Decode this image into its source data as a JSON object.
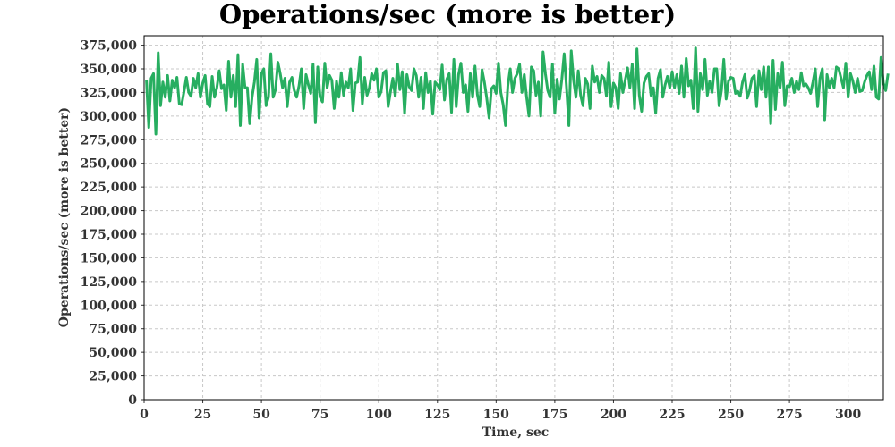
{
  "chart_data": {
    "type": "line",
    "title": "Operations/sec (more is better)",
    "xlabel": "Time, sec",
    "ylabel": "Operations/sec (more is better)",
    "xlim": [
      0,
      315
    ],
    "ylim": [
      0,
      385000
    ],
    "x_ticks": [
      "0",
      "25",
      "50",
      "75",
      "100",
      "125",
      "150",
      "175",
      "200",
      "225",
      "250",
      "275",
      "300"
    ],
    "y_ticks": [
      "0",
      "25,000",
      "50,000",
      "75,000",
      "100,000",
      "125,000",
      "150,000",
      "175,000",
      "200,000",
      "225,000",
      "250,000",
      "275,000",
      "300,000",
      "325,000",
      "350,000",
      "375,000"
    ],
    "grid": true,
    "series": [
      {
        "color": "#27ae60",
        "x_start": 1,
        "x_step": 1,
        "values": [
          338000,
          288000,
          340000,
          345000,
          281000,
          367000,
          311000,
          336000,
          320000,
          343000,
          316000,
          338000,
          330000,
          341000,
          313000,
          312000,
          326000,
          341000,
          325000,
          321000,
          340000,
          330000,
          345000,
          320000,
          335000,
          343000,
          313000,
          310000,
          342000,
          320000,
          330000,
          348000,
          329000,
          333000,
          306000,
          358000,
          320000,
          343000,
          310000,
          365000,
          290000,
          355000,
          330000,
          330000,
          292000,
          320000,
          336000,
          360000,
          298000,
          345000,
          350000,
          311000,
          320000,
          366000,
          320000,
          328000,
          357000,
          345000,
          330000,
          340000,
          310000,
          336000,
          341000,
          327000,
          320000,
          332000,
          350000,
          308000,
          344000,
          333000,
          324000,
          355000,
          293000,
          352000,
          320000,
          315000,
          356000,
          330000,
          343000,
          338000,
          308000,
          337000,
          320000,
          346000,
          322000,
          336000,
          330000,
          350000,
          306000,
          335000,
          336000,
          362000,
          313000,
          341000,
          322000,
          330000,
          345000,
          338000,
          350000,
          320000,
          326000,
          346000,
          348000,
          310000,
          326000,
          340000,
          321000,
          355000,
          328000,
          347000,
          303000,
          344000,
          331000,
          327000,
          350000,
          343000,
          320000,
          341000,
          308000,
          346000,
          325000,
          337000,
          302000,
          336000,
          333000,
          328000,
          354000,
          317000,
          339000,
          345000,
          304000,
          360000,
          310000,
          344000,
          356000,
          325000,
          333000,
          305000,
          345000,
          320000,
          353000,
          323000,
          310000,
          349000,
          336000,
          319000,
          298000,
          329000,
          332000,
          324000,
          356000,
          325000,
          312000,
          290000,
          332000,
          350000,
          325000,
          340000,
          345000,
          355000,
          325000,
          344000,
          320000,
          300000,
          352000,
          348000,
          322000,
          336000,
          300000,
          368000,
          345000,
          327000,
          320000,
          355000,
          303000,
          339000,
          318000,
          339000,
          366000,
          330000,
          290000,
          369000,
          338000,
          320000,
          348000,
          322000,
          311000,
          340000,
          334000,
          308000,
          353000,
          336000,
          342000,
          325000,
          343000,
          340000,
          321000,
          357000,
          310000,
          335000,
          330000,
          308000,
          345000,
          325000,
          338000,
          351000,
          330000,
          355000,
          308000,
          371000,
          322000,
          305000,
          335000,
          342000,
          345000,
          322000,
          330000,
          303000,
          340000,
          349000,
          320000,
          333000,
          342000,
          330000,
          347000,
          330000,
          344000,
          324000,
          353000,
          320000,
          361000,
          332000,
          338000,
          308000,
          372000,
          305000,
          345000,
          328000,
          360000,
          322000,
          337000,
          325000,
          350000,
          350000,
          311000,
          327000,
          360000,
          318000,
          337000,
          341000,
          340000,
          324000,
          326000,
          321000,
          336000,
          344000,
          319000,
          327000,
          340000,
          343000,
          310000,
          348000,
          328000,
          352000,
          320000,
          352000,
          292000,
          359000,
          307000,
          345000,
          330000,
          357000,
          311000,
          332000,
          331000,
          340000,
          325000,
          337000,
          328000,
          346000,
          332000,
          334000,
          330000,
          324000,
          336000,
          350000,
          310000,
          340000,
          350000,
          296000,
          344000,
          330000,
          340000,
          330000,
          352000,
          350000,
          340000,
          330000,
          356000,
          320000,
          345000,
          337000,
          325000,
          340000,
          326000,
          327000,
          336000,
          343000,
          347000,
          328000,
          353000,
          320000,
          318000,
          362000,
          335000,
          327000,
          345000
        ]
      }
    ]
  }
}
